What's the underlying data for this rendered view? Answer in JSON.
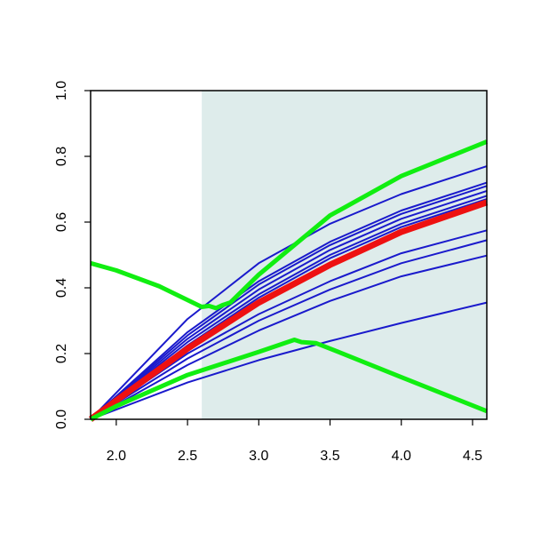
{
  "chart_data": {
    "type": "line",
    "title": "",
    "xlabel": "",
    "ylabel": "",
    "xlim": [
      1.82,
      4.6
    ],
    "ylim": [
      0.0,
      1.0
    ],
    "x_ticks": [
      "2.0",
      "2.5",
      "3.0",
      "3.5",
      "4.0",
      "4.5"
    ],
    "y_ticks": [
      "0.0",
      "0.2",
      "0.4",
      "0.6",
      "0.8",
      "1.0"
    ],
    "grid": false,
    "legend": "none",
    "shaded_region": {
      "x_start": 2.6,
      "x_end": 4.6,
      "color": "#deeceb"
    },
    "colors": {
      "blue": "#1a1acc",
      "red": "#ee1111",
      "green": "#11ee11"
    },
    "blue_series": [
      {
        "x": [
          1.82,
          2.5,
          3.0,
          3.5,
          4.0,
          4.6
        ],
        "y": [
          0.0,
          0.305,
          0.475,
          0.595,
          0.685,
          0.77
        ]
      },
      {
        "x": [
          1.82,
          2.5,
          3.0,
          3.5,
          4.0,
          4.6
        ],
        "y": [
          0.0,
          0.265,
          0.42,
          0.54,
          0.635,
          0.72
        ]
      },
      {
        "x": [
          1.82,
          2.5,
          3.0,
          3.5,
          4.0,
          4.6
        ],
        "y": [
          0.0,
          0.255,
          0.41,
          0.53,
          0.625,
          0.71
        ]
      },
      {
        "x": [
          1.82,
          2.5,
          3.0,
          3.5,
          4.0,
          4.6
        ],
        "y": [
          0.0,
          0.245,
          0.395,
          0.515,
          0.61,
          0.695
        ]
      },
      {
        "x": [
          1.82,
          2.5,
          3.0,
          3.5,
          4.0,
          4.6
        ],
        "y": [
          0.0,
          0.235,
          0.38,
          0.5,
          0.595,
          0.68
        ]
      },
      {
        "x": [
          1.82,
          2.5,
          3.0,
          3.5,
          4.0,
          4.6
        ],
        "y": [
          0.0,
          0.225,
          0.37,
          0.49,
          0.585,
          0.67
        ]
      },
      {
        "x": [
          1.82,
          2.5,
          3.0,
          3.5,
          4.0,
          4.6
        ],
        "y": [
          0.0,
          0.2,
          0.32,
          0.42,
          0.505,
          0.575
        ]
      },
      {
        "x": [
          1.82,
          2.5,
          3.0,
          3.5,
          4.0,
          4.6
        ],
        "y": [
          0.0,
          0.185,
          0.3,
          0.395,
          0.475,
          0.545
        ]
      },
      {
        "x": [
          1.82,
          2.5,
          3.0,
          3.5,
          4.0,
          4.6
        ],
        "y": [
          0.0,
          0.165,
          0.27,
          0.36,
          0.435,
          0.498
        ]
      },
      {
        "x": [
          1.82,
          2.5,
          3.0,
          3.5,
          4.0,
          4.6
        ],
        "y": [
          0.0,
          0.112,
          0.18,
          0.238,
          0.293,
          0.355
        ]
      }
    ],
    "red_series": {
      "x": [
        1.82,
        2.5,
        3.0,
        3.5,
        4.0,
        4.6
      ],
      "y": [
        0.0,
        0.215,
        0.355,
        0.47,
        0.57,
        0.66
      ]
    },
    "green_upper": {
      "x": [
        1.82,
        2.0,
        2.3,
        2.6,
        2.65,
        2.7,
        2.75,
        2.8,
        3.0,
        3.5,
        4.0,
        4.6
      ],
      "y": [
        0.475,
        0.453,
        0.405,
        0.342,
        0.345,
        0.338,
        0.348,
        0.355,
        0.44,
        0.62,
        0.74,
        0.845
      ]
    },
    "green_lower": {
      "x": [
        1.82,
        2.0,
        2.5,
        3.0,
        3.25,
        3.3,
        3.4,
        3.5,
        4.0,
        4.6
      ],
      "y": [
        0.0,
        0.04,
        0.135,
        0.205,
        0.242,
        0.235,
        0.232,
        0.215,
        0.128,
        0.025
      ]
    }
  }
}
